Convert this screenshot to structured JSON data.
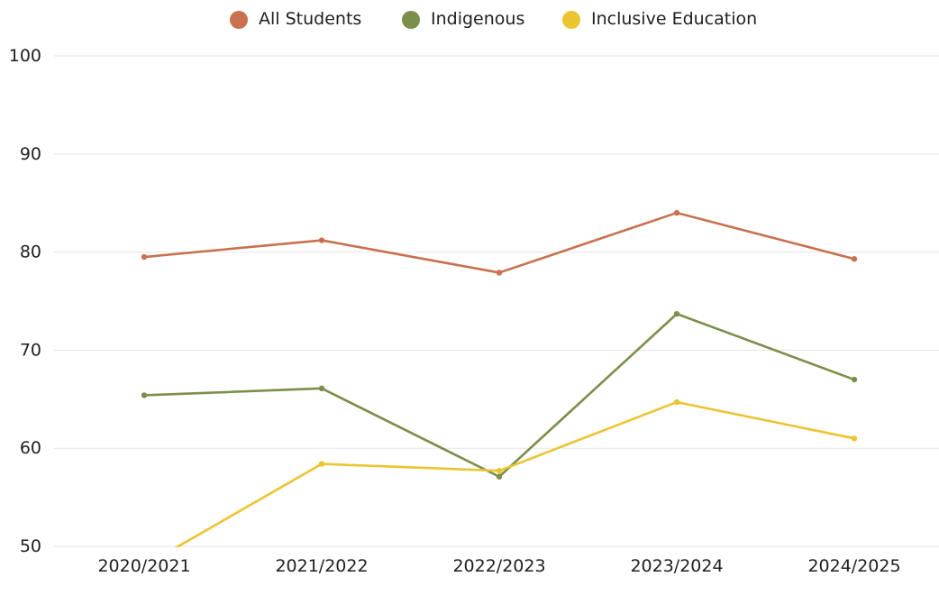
{
  "chart_data": {
    "type": "line",
    "categories": [
      "2020/2021",
      "2021/2022",
      "2022/2023",
      "2023/2024",
      "2024/2025"
    ],
    "series": [
      {
        "name": "All Students",
        "color": "#c8714e",
        "values": [
          79.5,
          81.2,
          77.9,
          84.0,
          79.3
        ]
      },
      {
        "name": "Indigenous",
        "color": "#7b8f4a",
        "values": [
          65.4,
          66.1,
          57.1,
          73.7,
          67.0
        ]
      },
      {
        "name": "Inclusive Education",
        "color": "#ecc430",
        "values": [
          48.0,
          58.4,
          57.7,
          64.7,
          61.0
        ]
      }
    ],
    "ylim": [
      50,
      100
    ],
    "yticks": [
      50,
      60,
      70,
      80,
      90,
      100
    ],
    "grid": true,
    "legend_position": "top-center"
  }
}
